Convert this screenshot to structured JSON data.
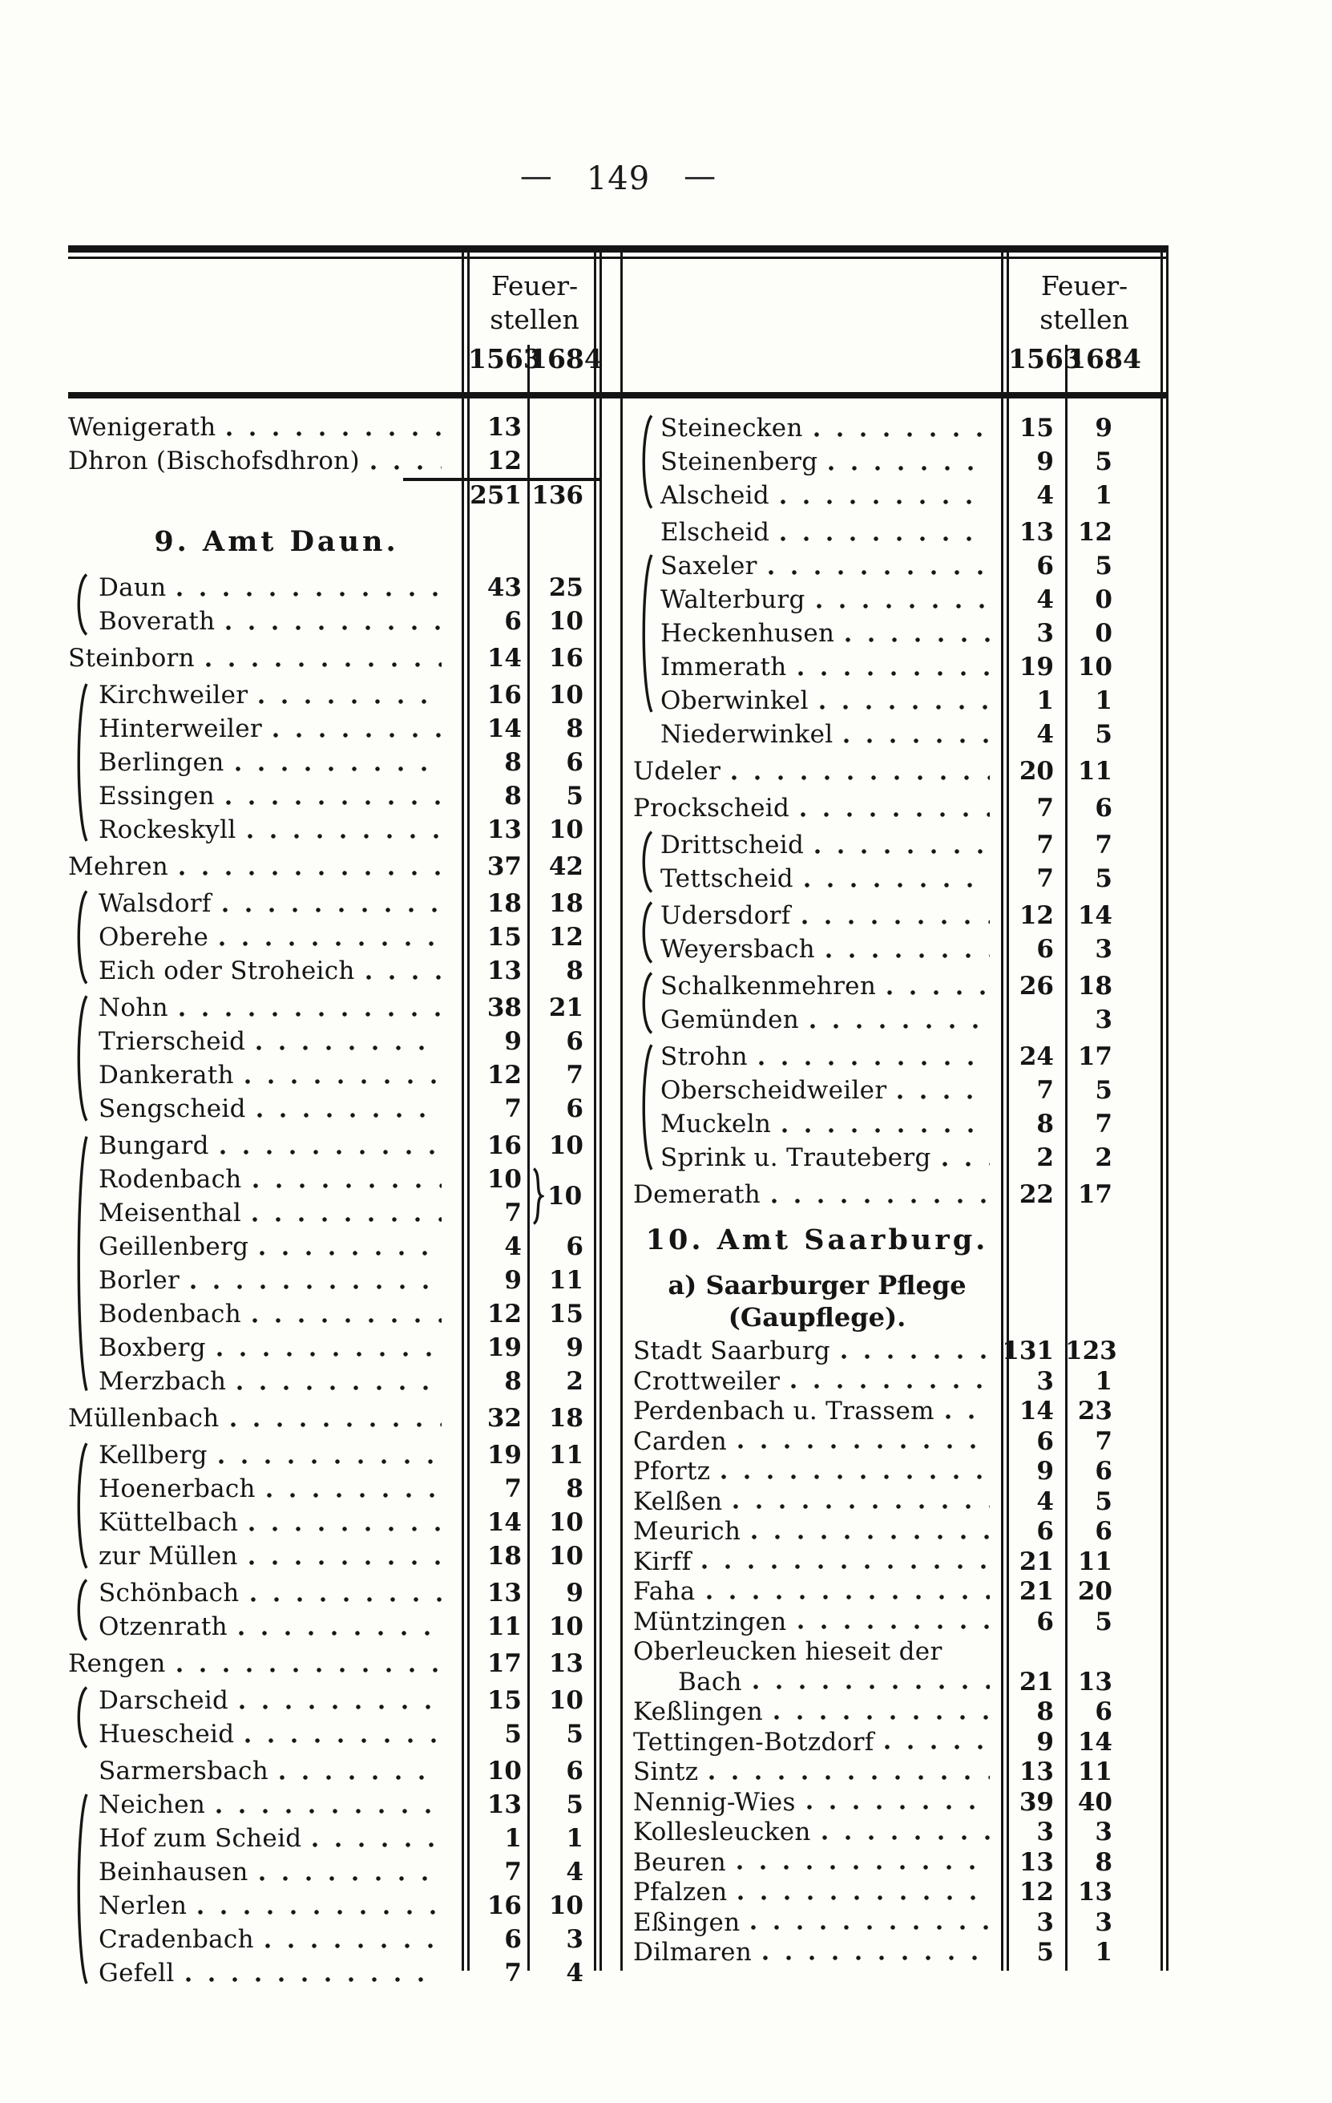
{
  "page_dash": "—",
  "page_number": "149",
  "col_header": {
    "line1": "Feuer-",
    "line2": "stellen",
    "year1": "1563",
    "year2": "1684"
  },
  "columns": {
    "left": {
      "blocks": [
        {
          "type": "rows",
          "brace": false,
          "rows": [
            {
              "name": "Wenigerath",
              "v1": "13",
              "v2": ""
            },
            {
              "name": "Dhron (Bischofsdhron)",
              "v1": "12",
              "v2": ""
            }
          ]
        },
        {
          "type": "sum",
          "v1": "251",
          "v2": "136"
        },
        {
          "type": "heading",
          "text": "9. Amt Daun."
        },
        {
          "type": "rows",
          "brace": true,
          "rows": [
            {
              "name": "Daun",
              "v1": "43",
              "v2": "25"
            },
            {
              "name": "Boverath",
              "v1": "6",
              "v2": "10"
            }
          ]
        },
        {
          "type": "rows",
          "brace": false,
          "rows": [
            {
              "name": "Steinborn",
              "v1": "14",
              "v2": "16"
            }
          ]
        },
        {
          "type": "rows",
          "brace": true,
          "rows": [
            {
              "name": "Kirchweiler",
              "v1": "16",
              "v2": "10"
            },
            {
              "name": "Hinterweiler",
              "v1": "14",
              "v2": "8"
            },
            {
              "name": "Berlingen",
              "v1": "8",
              "v2": "6"
            },
            {
              "name": "Essingen",
              "v1": "8",
              "v2": "5"
            },
            {
              "name": "Rockeskyll",
              "v1": "13",
              "v2": "10"
            }
          ]
        },
        {
          "type": "rows",
          "brace": false,
          "rows": [
            {
              "name": "Mehren",
              "v1": "37",
              "v2": "42"
            }
          ]
        },
        {
          "type": "rows",
          "brace": true,
          "rows": [
            {
              "name": "Walsdorf",
              "v1": "18",
              "v2": "18"
            },
            {
              "name": "Oberehe",
              "v1": "15",
              "v2": "12"
            },
            {
              "name": "Eich oder Stroheich",
              "v1": "13",
              "v2": "8"
            }
          ]
        },
        {
          "type": "rows",
          "brace": true,
          "rows": [
            {
              "name": "Nohn",
              "v1": "38",
              "v2": "21"
            },
            {
              "name": "Trierscheid",
              "v1": "9",
              "v2": "6"
            },
            {
              "name": "Dankerath",
              "v1": "12",
              "v2": "7"
            },
            {
              "name": "Sengscheid",
              "v1": "7",
              "v2": "6"
            }
          ]
        },
        {
          "type": "rows",
          "brace": true,
          "merge_v2": {
            "from": 1,
            "span": 2,
            "value": "10"
          },
          "rows": [
            {
              "name": "Bungard",
              "v1": "16",
              "v2": "10"
            },
            {
              "name": "Rodenbach",
              "v1": "10",
              "v2": ""
            },
            {
              "name": "Meisenthal",
              "v1": "7",
              "v2": ""
            },
            {
              "name": "Geillenberg",
              "v1": "4",
              "v2": "6"
            },
            {
              "name": "Borler",
              "v1": "9",
              "v2": "11"
            },
            {
              "name": "Bodenbach",
              "v1": "12",
              "v2": "15"
            },
            {
              "name": "Boxberg",
              "v1": "19",
              "v2": "9"
            },
            {
              "name": "Merzbach",
              "v1": "8",
              "v2": "2"
            }
          ]
        },
        {
          "type": "rows",
          "brace": false,
          "rows": [
            {
              "name": "Müllenbach",
              "v1": "32",
              "v2": "18"
            }
          ]
        },
        {
          "type": "rows",
          "brace": true,
          "rows": [
            {
              "name": "Kellberg",
              "v1": "19",
              "v2": "11"
            },
            {
              "name": "Hoenerbach",
              "v1": "7",
              "v2": "8"
            },
            {
              "name": "Küttelbach",
              "v1": "14",
              "v2": "10"
            },
            {
              "name": "zur Müllen",
              "v1": "18",
              "v2": "10"
            }
          ]
        },
        {
          "type": "rows",
          "brace": true,
          "rows": [
            {
              "name": "Schönbach",
              "v1": "13",
              "v2": "9"
            },
            {
              "name": "Otzenrath",
              "v1": "11",
              "v2": "10"
            }
          ]
        },
        {
          "type": "rows",
          "brace": false,
          "rows": [
            {
              "name": "Rengen",
              "v1": "17",
              "v2": "13"
            }
          ]
        },
        {
          "type": "rows",
          "brace": true,
          "rows": [
            {
              "name": "Darscheid",
              "v1": "15",
              "v2": "10"
            },
            {
              "name": "Huescheid",
              "v1": "5",
              "v2": "5"
            }
          ]
        },
        {
          "type": "rows",
          "brace": true,
          "brace_from": 1,
          "rows": [
            {
              "name": "Sarmersbach",
              "v1": "10",
              "v2": "6"
            },
            {
              "name": "Neichen",
              "v1": "13",
              "v2": "5"
            },
            {
              "name": "Hof zum Scheid",
              "v1": "1",
              "v2": "1"
            },
            {
              "name": "Beinhausen",
              "v1": "7",
              "v2": "4"
            },
            {
              "name": "Nerlen",
              "v1": "16",
              "v2": "10"
            },
            {
              "name": "Cradenbach",
              "v1": "6",
              "v2": "3"
            },
            {
              "name": "Gefell",
              "v1": "7",
              "v2": "4"
            }
          ]
        }
      ]
    },
    "right": {
      "blocks": [
        {
          "type": "rows",
          "brace": true,
          "rows": [
            {
              "name": "Steinecken",
              "v1": "15",
              "v2": "9"
            },
            {
              "name": "Steinenberg",
              "v1": "9",
              "v2": "5"
            },
            {
              "name": "Alscheid",
              "v1": "4",
              "v2": "1"
            }
          ]
        },
        {
          "type": "rows",
          "brace": true,
          "brace_from": 1,
          "brace_to": 5,
          "rows": [
            {
              "name": "Elscheid",
              "v1": "13",
              "v2": "12"
            },
            {
              "name": "Saxeler",
              "v1": "6",
              "v2": "5"
            },
            {
              "name": "Walterburg",
              "v1": "4",
              "v2": "0"
            },
            {
              "name": "Heckenhusen",
              "v1": "3",
              "v2": "0"
            },
            {
              "name": "Immerath",
              "v1": "19",
              "v2": "10"
            },
            {
              "name": "Oberwinkel",
              "v1": "1",
              "v2": "1"
            },
            {
              "name": "Niederwinkel",
              "v1": "4",
              "v2": "5"
            }
          ]
        },
        {
          "type": "rows",
          "brace": false,
          "rows": [
            {
              "name": "Udeler",
              "v1": "20",
              "v2": "11"
            }
          ]
        },
        {
          "type": "rows",
          "brace": false,
          "rows": [
            {
              "name": "Prockscheid",
              "v1": "7",
              "v2": "6"
            }
          ]
        },
        {
          "type": "rows",
          "brace": true,
          "rows": [
            {
              "name": "Drittscheid",
              "v1": "7",
              "v2": "7"
            },
            {
              "name": "Tettscheid",
              "v1": "7",
              "v2": "5"
            }
          ]
        },
        {
          "type": "rows",
          "brace": true,
          "rows": [
            {
              "name": "Udersdorf",
              "v1": "12",
              "v2": "14"
            },
            {
              "name": "Weyersbach",
              "v1": "6",
              "v2": "3"
            }
          ]
        },
        {
          "type": "rows",
          "brace": true,
          "rows": [
            {
              "name": "Schalkenmehren",
              "v1": "26",
              "v2": "18"
            },
            {
              "name": "Gemünden",
              "v1": "",
              "v2": "3"
            }
          ]
        },
        {
          "type": "rows",
          "brace": true,
          "rows": [
            {
              "name": "Strohn",
              "v1": "24",
              "v2": "17"
            },
            {
              "name": "Oberscheidweiler",
              "v1": "7",
              "v2": "5"
            },
            {
              "name": "Muckeln",
              "v1": "8",
              "v2": "7"
            },
            {
              "name": "Sprink u. Trauteberg",
              "v1": "2",
              "v2": "2"
            }
          ]
        },
        {
          "type": "rows",
          "brace": false,
          "rows": [
            {
              "name": "Demerath",
              "v1": "22",
              "v2": "17"
            }
          ]
        },
        {
          "type": "heading",
          "text": "10. Amt Saarburg."
        },
        {
          "type": "subheading",
          "lines": [
            "a)  Saarburger  Pflege",
            "(Gaupflege)."
          ]
        },
        {
          "type": "rows",
          "brace": false,
          "pitch": 37.5,
          "rows": [
            {
              "name": "Stadt Saarburg",
              "v1": "131",
              "v2": "123"
            },
            {
              "name": "Crottweiler",
              "v1": "3",
              "v2": "1"
            },
            {
              "name": "Perdenbach u. Trassem",
              "v1": "14",
              "v2": "23"
            },
            {
              "name": "Carden",
              "v1": "6",
              "v2": "7"
            },
            {
              "name": "Pfortz",
              "v1": "9",
              "v2": "6"
            },
            {
              "name": "Kelßen",
              "v1": "4",
              "v2": "5"
            },
            {
              "name": "Meurich",
              "v1": "6",
              "v2": "6"
            },
            {
              "name": "Kirff",
              "v1": "21",
              "v2": "11"
            },
            {
              "name": "Faha",
              "v1": "21",
              "v2": "20"
            },
            {
              "name": "Müntzingen",
              "v1": "6",
              "v2": "5"
            },
            {
              "name": "Oberleucken hieseit der",
              "name2": "Bach",
              "v1": "21",
              "v2": "13"
            },
            {
              "name": "Keßlingen",
              "v1": "8",
              "v2": "6"
            },
            {
              "name": "Tettingen-Botzdorf",
              "v1": "9",
              "v2": "14"
            },
            {
              "name": "Sintz",
              "v1": "13",
              "v2": "11"
            },
            {
              "name": "Nennig-Wies",
              "v1": "39",
              "v2": "40"
            },
            {
              "name": "Kollesleucken",
              "v1": "3",
              "v2": "3"
            },
            {
              "name": "Beuren",
              "v1": "13",
              "v2": "8"
            },
            {
              "name": "Pfalzen",
              "v1": "12",
              "v2": "13"
            },
            {
              "name": "Eßingen",
              "v1": "3",
              "v2": "3"
            },
            {
              "name": "Dilmaren",
              "v1": "5",
              "v2": "1"
            }
          ]
        }
      ]
    }
  }
}
